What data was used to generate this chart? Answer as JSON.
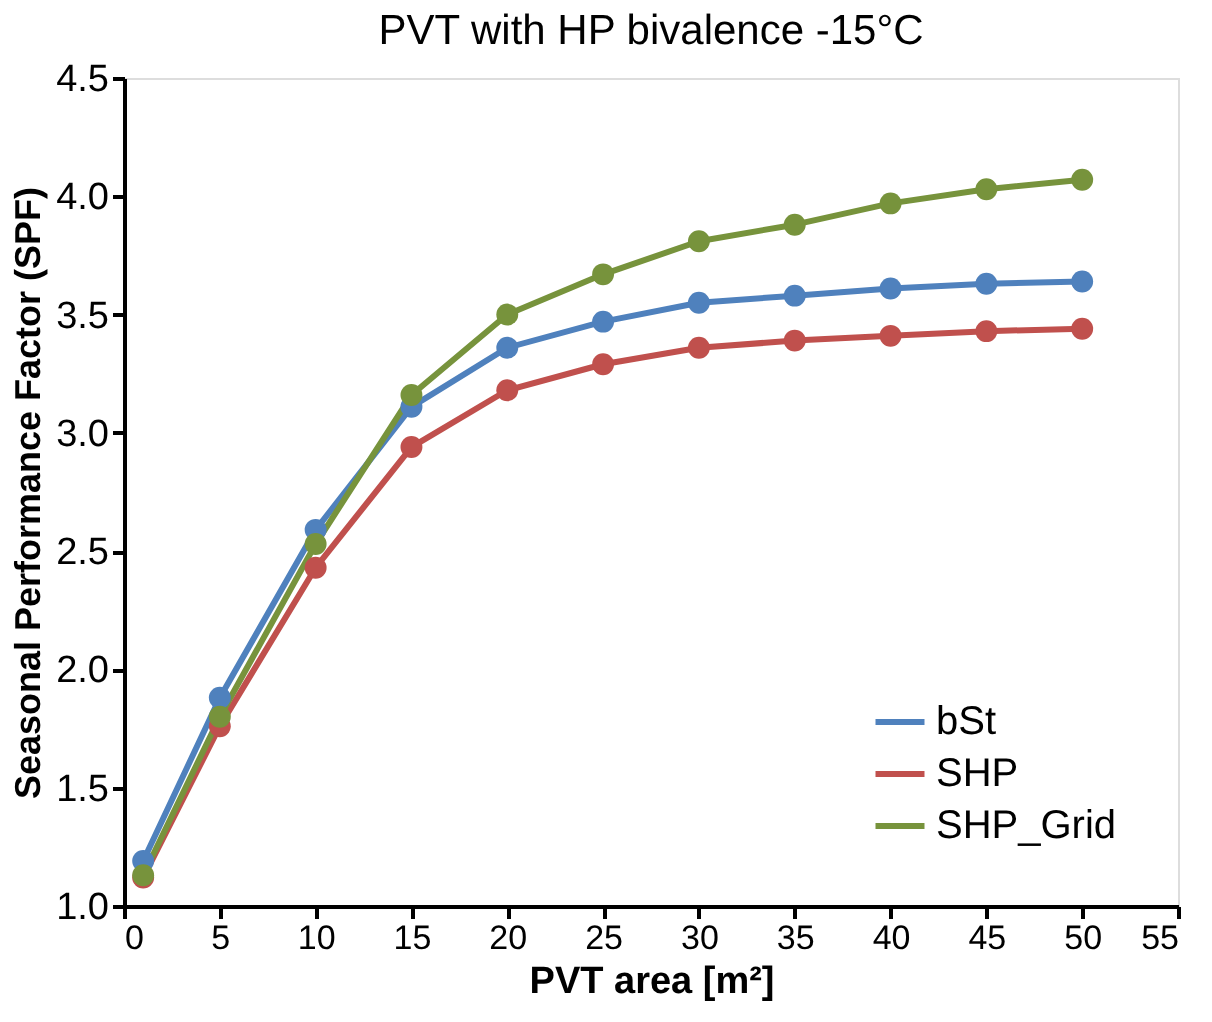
{
  "chart_data": {
    "type": "line",
    "title": "PVT with HP bivalence -15°C",
    "xlabel": "PVT area [m²]",
    "ylabel": "Seasonal Performance Factor (SPF)",
    "x": [
      1,
      5,
      10,
      15,
      20,
      25,
      30,
      35,
      40,
      45,
      50
    ],
    "series": [
      {
        "name": "bSt",
        "color": "#4f81bd",
        "values": [
          1.19,
          1.88,
          2.59,
          3.11,
          3.36,
          3.47,
          3.55,
          3.58,
          3.61,
          3.63,
          3.64
        ]
      },
      {
        "name": "SHP",
        "color": "#c0504d",
        "values": [
          1.12,
          1.76,
          2.43,
          2.94,
          3.18,
          3.29,
          3.36,
          3.39,
          3.41,
          3.43,
          3.44
        ]
      },
      {
        "name": "SHP_Grid",
        "color": "#77933c",
        "values": [
          1.13,
          1.8,
          2.53,
          3.16,
          3.5,
          3.67,
          3.81,
          3.88,
          3.97,
          4.03,
          4.07
        ]
      }
    ],
    "xlim": [
      0,
      55
    ],
    "xticks": [
      0,
      5,
      10,
      15,
      20,
      25,
      30,
      35,
      40,
      45,
      50,
      55
    ],
    "ylim": [
      1.0,
      4.5
    ],
    "yticks": [
      {
        "value": 1.0,
        "label": "1.0"
      },
      {
        "value": 1.5,
        "label": "1.5"
      },
      {
        "value": 2.0,
        "label": "2.0"
      },
      {
        "value": 2.5,
        "label": "2.5"
      },
      {
        "value": 3.0,
        "label": "3.0"
      },
      {
        "value": 3.5,
        "label": "3.5"
      },
      {
        "value": 4.0,
        "label": "4.0"
      },
      {
        "value": 4.5,
        "label": "4.5"
      }
    ],
    "grid": false,
    "legend": "bottom right",
    "marker": "circle",
    "line_style": "solid"
  }
}
